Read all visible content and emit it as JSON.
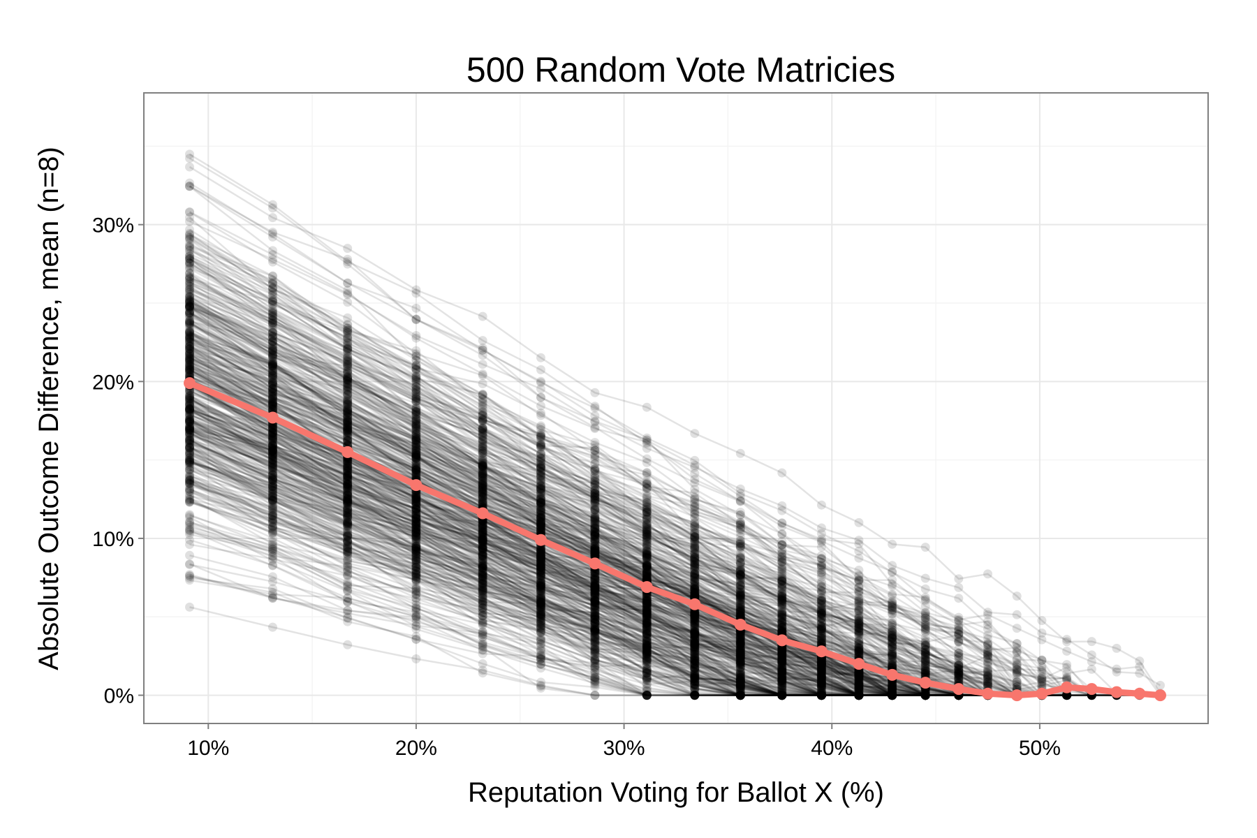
{
  "chart_data": {
    "type": "line",
    "title": "500 Random Vote Matricies",
    "xlabel": "Reputation Voting for Ballot X (%)",
    "ylabel": "Absolute Outcome Difference, mean (n=8)",
    "xlim": [
      6.9,
      58.1
    ],
    "ylim": [
      -1.8,
      38.4
    ],
    "x_ticks": [
      10,
      20,
      30,
      40,
      50
    ],
    "x_tick_labels": [
      "10%",
      "20%",
      "30%",
      "40%",
      "50%"
    ],
    "y_ticks": [
      0,
      10,
      20,
      30
    ],
    "y_tick_labels": [
      "0%",
      "10%",
      "20%",
      "30%"
    ],
    "grid": true,
    "legend": "none",
    "x": [
      9.1,
      13.1,
      16.7,
      20.0,
      23.2,
      26.0,
      28.6,
      31.1,
      33.4,
      35.6,
      37.6,
      39.5,
      41.3,
      42.9,
      44.5,
      46.1,
      47.5,
      48.9,
      50.1,
      51.3,
      52.5,
      53.7,
      54.8,
      55.8
    ],
    "series": [
      {
        "name": "",
        "color": "#F8766D",
        "values": [
          19.9,
          17.7,
          15.5,
          13.4,
          11.6,
          9.9,
          8.4,
          6.9,
          5.8,
          4.5,
          3.5,
          2.8,
          2.0,
          1.3,
          0.8,
          0.4,
          0.1,
          0.0,
          0.1,
          0.5,
          0.4,
          0.2,
          0.1,
          0.0
        ]
      }
    ],
    "background_series": {
      "count": 500,
      "color": "#000000",
      "distribution": "random matrices, each a declining line across the same x positions"
    }
  }
}
